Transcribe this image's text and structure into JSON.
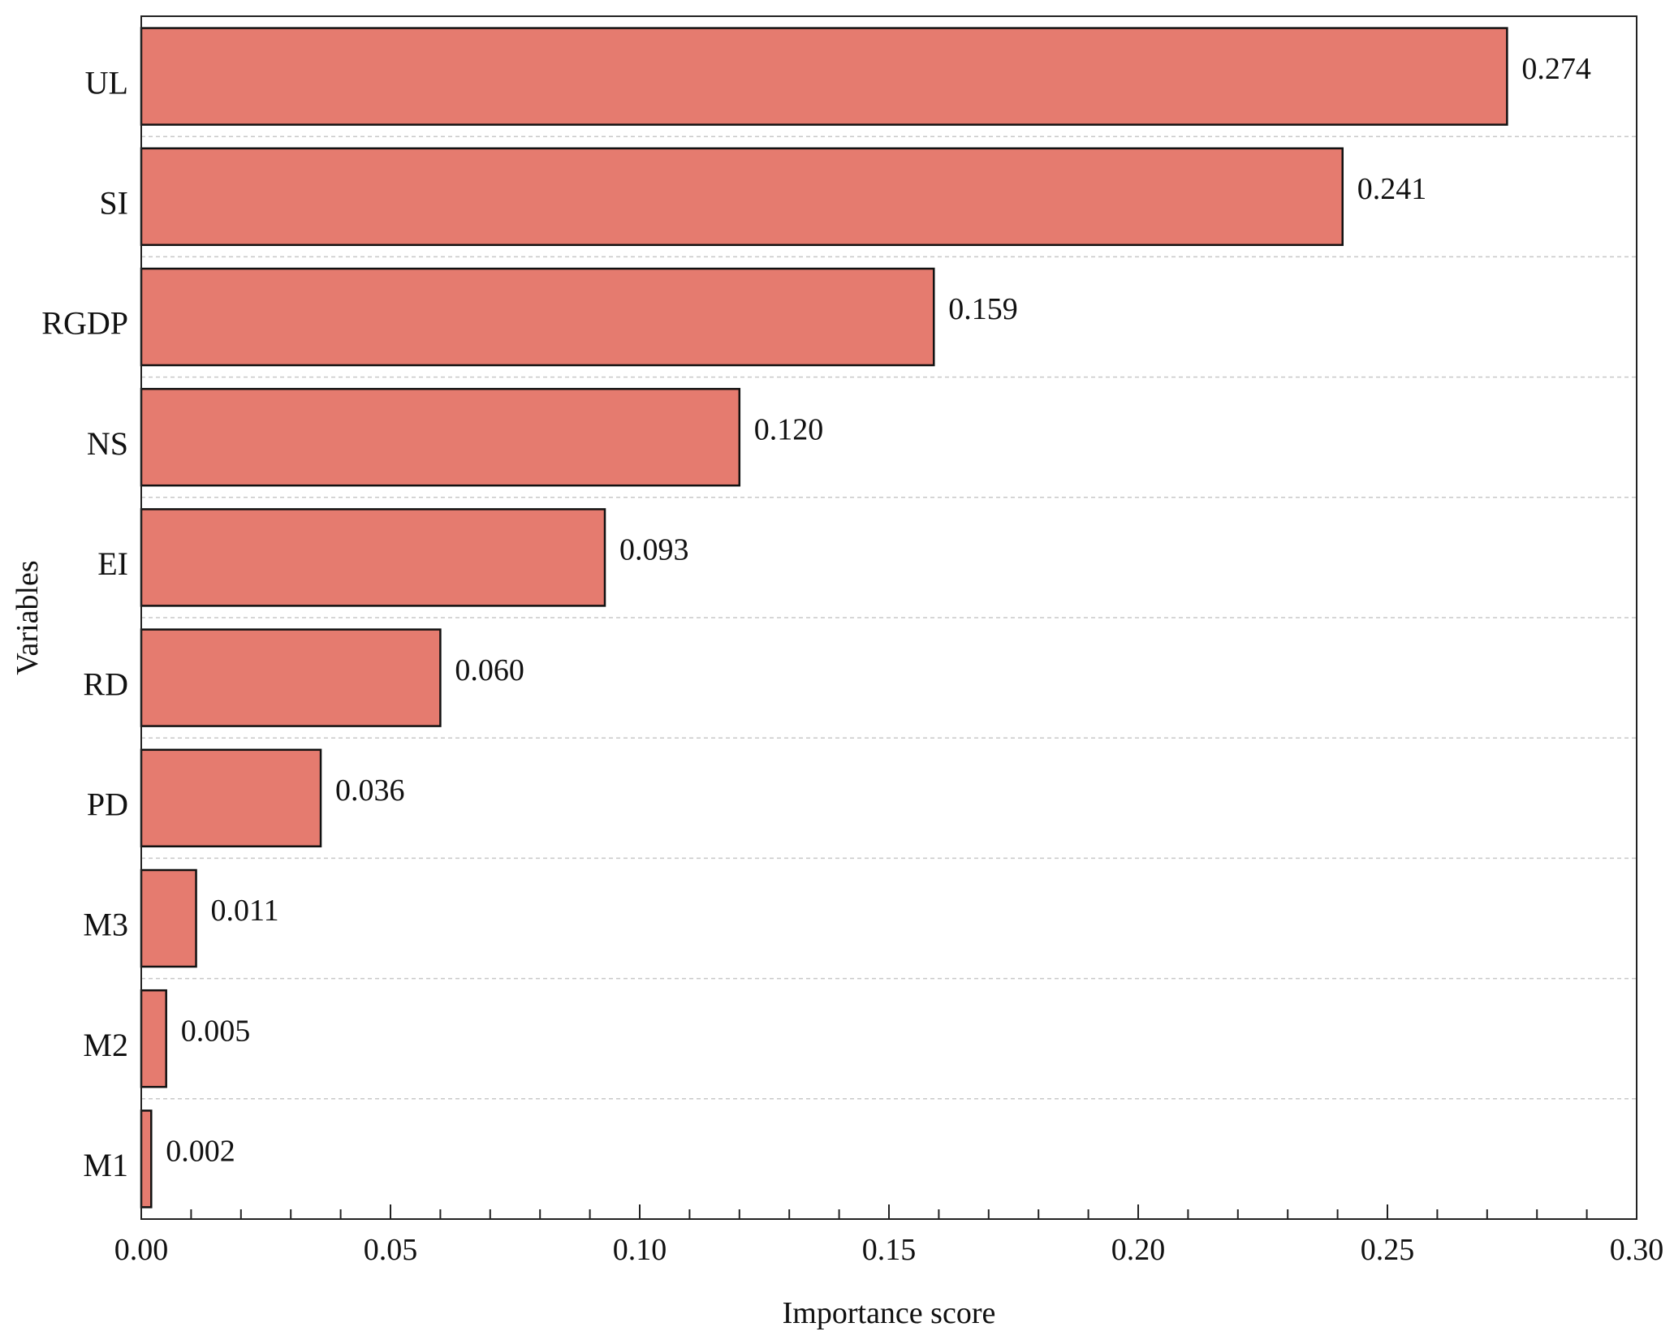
{
  "chart_data": {
    "type": "bar",
    "orientation": "horizontal",
    "title": "",
    "xlabel": "Importance score",
    "ylabel": "Variables",
    "categories": [
      "UL",
      "SI",
      "RGDP",
      "NS",
      "EI",
      "RD",
      "PD",
      "M3",
      "M2",
      "M1"
    ],
    "values": [
      0.274,
      0.241,
      0.159,
      0.12,
      0.093,
      0.06,
      0.036,
      0.011,
      0.005,
      0.002
    ],
    "value_labels": [
      "0.274",
      "0.241",
      "0.159",
      "0.120",
      "0.093",
      "0.060",
      "0.036",
      "0.011",
      "0.005",
      "0.002"
    ],
    "xlim": [
      0,
      0.3
    ],
    "xticks": [
      0.0,
      0.05,
      0.1,
      0.15,
      0.2,
      0.25,
      0.3
    ],
    "xtick_labels": [
      "0.00",
      "0.05",
      "0.10",
      "0.15",
      "0.20",
      "0.25",
      "0.30"
    ],
    "minor_tick_step": 0.01,
    "grid": "horizontal dashed separators",
    "bar_color": "#e57b6f",
    "bar_edge_color": "#111111",
    "grid_color": "#c8c8c8"
  }
}
